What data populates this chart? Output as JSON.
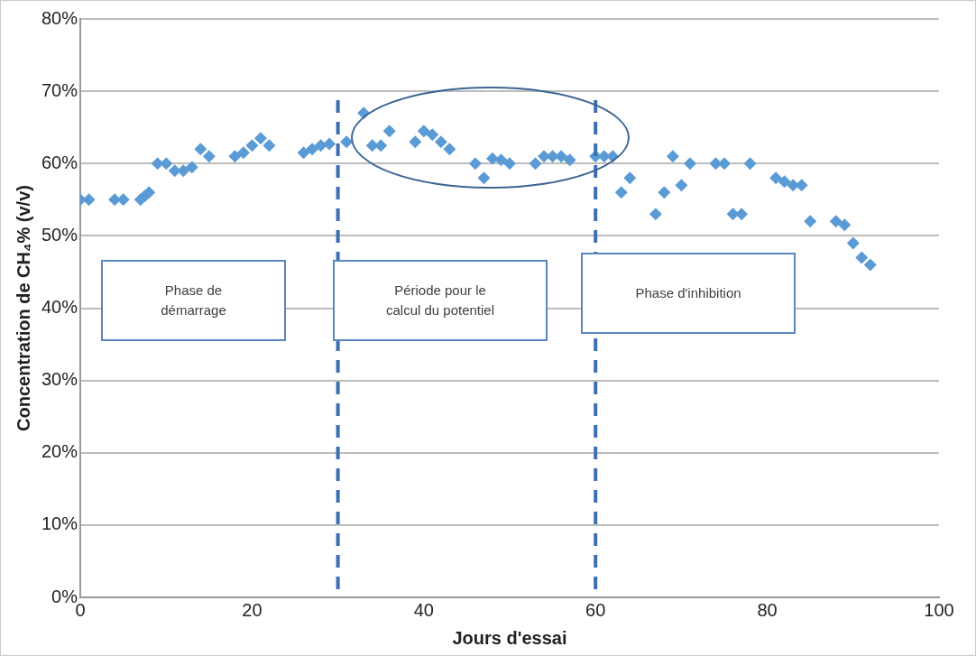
{
  "chart_data": {
    "type": "scatter",
    "xlabel": "Jours d'essai",
    "ylabel": "Concentration de CH₄% (v/v)",
    "x": [
      0,
      1,
      4,
      5,
      7,
      7.5,
      8,
      9,
      10,
      11,
      12,
      13,
      14,
      15,
      18,
      19,
      20,
      21,
      22,
      26,
      27,
      28,
      29,
      31,
      33,
      34,
      35,
      36,
      39,
      40,
      41,
      42,
      43,
      46,
      47,
      48,
      49,
      50,
      53,
      54,
      55,
      56,
      57,
      60,
      61,
      62,
      63,
      64,
      67,
      68,
      69,
      70,
      71,
      74,
      75,
      76,
      77,
      78,
      81,
      82,
      83,
      84,
      85,
      88,
      89,
      90,
      91,
      92
    ],
    "series": [
      {
        "color": "#5b9bd5",
        "values": [
          55,
          55,
          55,
          55,
          55,
          55.5,
          56,
          60,
          60,
          59,
          59,
          59.5,
          62,
          61,
          61,
          61.5,
          62.5,
          63.5,
          62.5,
          61.5,
          62,
          62.5,
          62.7,
          63,
          67,
          62.5,
          62.5,
          64.5,
          63,
          64.5,
          64,
          63,
          62,
          60,
          58,
          60.7,
          60.5,
          60,
          60,
          61,
          61,
          61,
          60.5,
          61,
          61,
          61,
          56,
          58,
          53,
          56,
          61,
          57,
          60,
          60,
          60,
          53,
          53,
          60,
          58,
          57.5,
          57,
          57,
          52,
          52,
          51.5,
          49,
          47,
          46
        ]
      }
    ],
    "xlim": [
      0,
      100
    ],
    "xticks": [
      0,
      20,
      40,
      60,
      80,
      100
    ],
    "ylim": [
      0,
      80
    ],
    "yticks": [
      {
        "value": 0,
        "label": "0%"
      },
      {
        "value": 10,
        "label": "10%"
      },
      {
        "value": 20,
        "label": "20%"
      },
      {
        "value": 30,
        "label": "30%"
      },
      {
        "value": 40,
        "label": "40%"
      },
      {
        "value": 50,
        "label": "50%"
      },
      {
        "value": 60,
        "label": "60%"
      },
      {
        "value": 70,
        "label": "70%"
      },
      {
        "value": 80,
        "label": "80%"
      }
    ],
    "grid": "y",
    "legend": false,
    "marker": "diamond",
    "ref_lines": [
      {
        "axis": "x",
        "value": 30,
        "color": "#3a6fb5",
        "line_style": "dashed"
      },
      {
        "axis": "x",
        "value": 60,
        "color": "#3a6fb5",
        "line_style": "dashed"
      }
    ],
    "annotations": [
      "Phase de\ndémarrage",
      "Période pour le\ncalcul du potentiel",
      "Phase d'inhibition"
    ]
  }
}
